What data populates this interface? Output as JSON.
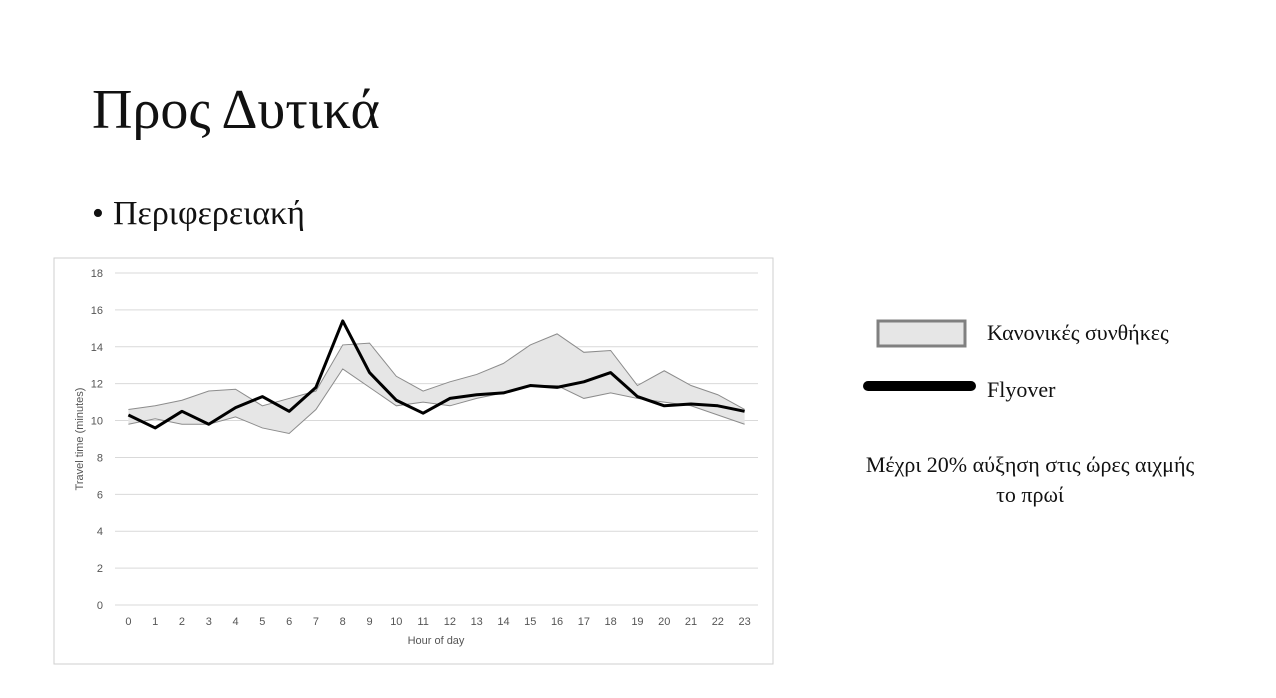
{
  "slide": {
    "title": "Προς Δυτικά",
    "bullet": "Περιφερειακή"
  },
  "chart_data": {
    "type": "band-line",
    "y_label": "Travel time (minutes)",
    "x_label": "Hour of day",
    "categories": [
      "0",
      "1",
      "2",
      "3",
      "4",
      "5",
      "6",
      "7",
      "8",
      "9",
      "10",
      "11",
      "12",
      "13",
      "14",
      "15",
      "16",
      "17",
      "18",
      "19",
      "20",
      "21",
      "22",
      "23"
    ],
    "ylim": [
      0,
      18
    ],
    "yticks": [
      0,
      2,
      4,
      6,
      8,
      10,
      12,
      14,
      16,
      18
    ],
    "grid": true,
    "series": [
      {
        "name": "Κανονικές συνθήκες",
        "color": "#e6e6e6",
        "upper": [
          10.6,
          10.8,
          11.1,
          11.6,
          11.7,
          10.8,
          11.2,
          11.6,
          14.1,
          14.2,
          12.4,
          11.6,
          12.1,
          12.5,
          13.1,
          14.1,
          14.7,
          13.7,
          13.8,
          11.9,
          12.7,
          11.9,
          11.4,
          10.6
        ],
        "lower": [
          9.8,
          10.1,
          9.8,
          9.8,
          10.2,
          9.6,
          9.3,
          10.6,
          12.8,
          11.8,
          10.8,
          11.0,
          10.8,
          11.2,
          11.5,
          11.9,
          11.9,
          11.2,
          11.5,
          11.2,
          11.0,
          10.8,
          10.3,
          9.8
        ]
      },
      {
        "name": "Flyover",
        "color": "#000000",
        "values": [
          10.3,
          9.6,
          10.5,
          9.8,
          10.7,
          11.3,
          10.5,
          11.8,
          15.4,
          12.6,
          11.1,
          10.4,
          11.2,
          11.4,
          11.5,
          11.9,
          11.8,
          12.1,
          12.6,
          11.3,
          10.8,
          10.9,
          10.8,
          10.5
        ]
      }
    ],
    "annotation": "Μέχρι 20% αύξηση στις ώρες αιχμής το πρωί"
  }
}
